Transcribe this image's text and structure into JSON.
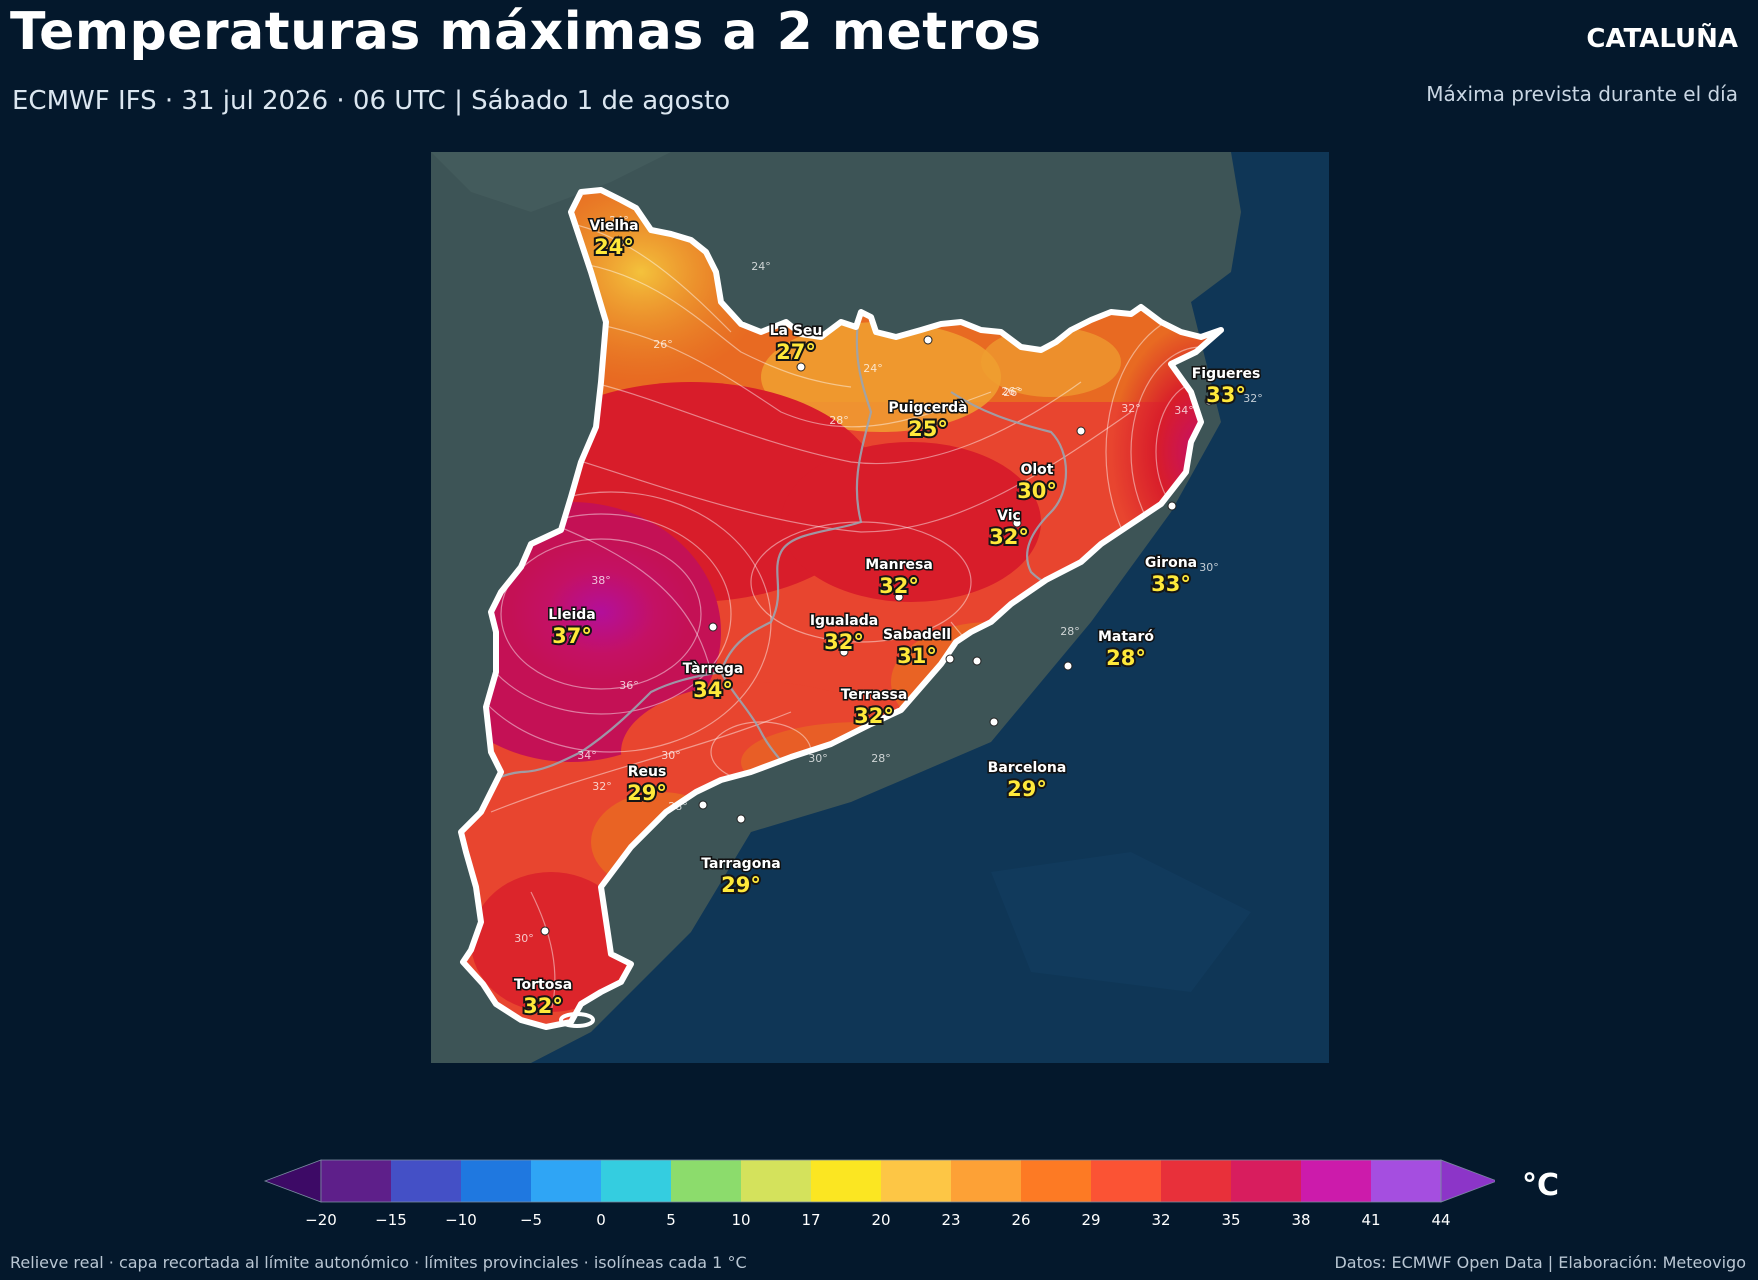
{
  "header": {
    "title": "Temperaturas máximas a 2 metros",
    "subtitle": "ECMWF IFS · 31 jul 2026 · 06 UTC  |  Sábado 1 de agosto",
    "region": "CATALUÑA",
    "region_note": "Máxima prevista durante el día"
  },
  "map": {
    "cities": [
      {
        "name": "Vielha",
        "temp": "24°"
      },
      {
        "name": "La Seu",
        "temp": "27°"
      },
      {
        "name": "Puigcerdà",
        "temp": "25°"
      },
      {
        "name": "Figueres",
        "temp": "33°"
      },
      {
        "name": "Olot",
        "temp": "30°"
      },
      {
        "name": "Vic",
        "temp": "32°"
      },
      {
        "name": "Girona",
        "temp": "33°"
      },
      {
        "name": "Manresa",
        "temp": "32°"
      },
      {
        "name": "Lleida",
        "temp": "37°"
      },
      {
        "name": "Igualada",
        "temp": "32°"
      },
      {
        "name": "Sabadell",
        "temp": "31°"
      },
      {
        "name": "Mataró",
        "temp": "28°"
      },
      {
        "name": "Tàrrega",
        "temp": "34°"
      },
      {
        "name": "Terrassa",
        "temp": "32°"
      },
      {
        "name": "Reus",
        "temp": "29°"
      },
      {
        "name": "Barcelona",
        "temp": "29°"
      },
      {
        "name": "Tarragona",
        "temp": "29°"
      },
      {
        "name": "Tortosa",
        "temp": "32°"
      }
    ],
    "isoline_labels": [
      "24°",
      "24°",
      "26°",
      "26°",
      "24°",
      "28°",
      "26°",
      "38°",
      "36°",
      "34°",
      "32°",
      "30°",
      "28°",
      "30°",
      "32°",
      "34°",
      "32°",
      "30°",
      "28°",
      "30°",
      "28°"
    ]
  },
  "colorbar": {
    "unit": "°C",
    "ticks": [
      "−20",
      "−15",
      "−10",
      "−5",
      "0",
      "5",
      "10",
      "17",
      "20",
      "23",
      "26",
      "29",
      "32",
      "35",
      "38",
      "41",
      "44"
    ],
    "colors": [
      "#5e1f8a",
      "#4450c6",
      "#1f78e0",
      "#2fa5f5",
      "#34cde0",
      "#8cdc6c",
      "#d4e25c",
      "#fbe622",
      "#fdc645",
      "#fda136",
      "#fd7a24",
      "#fb5334",
      "#e8303a",
      "#d81d5e",
      "#cc1bab",
      "#a54ee0"
    ],
    "under_color": "#3d0a66",
    "over_color": "#8c35c8"
  },
  "footer": {
    "left": "Relieve real · capa recortada al límite autonómico · límites provinciales · isolíneas cada 1 °C",
    "right": "Datos: ECMWF Open Data | Elaboración: Meteovigo"
  }
}
